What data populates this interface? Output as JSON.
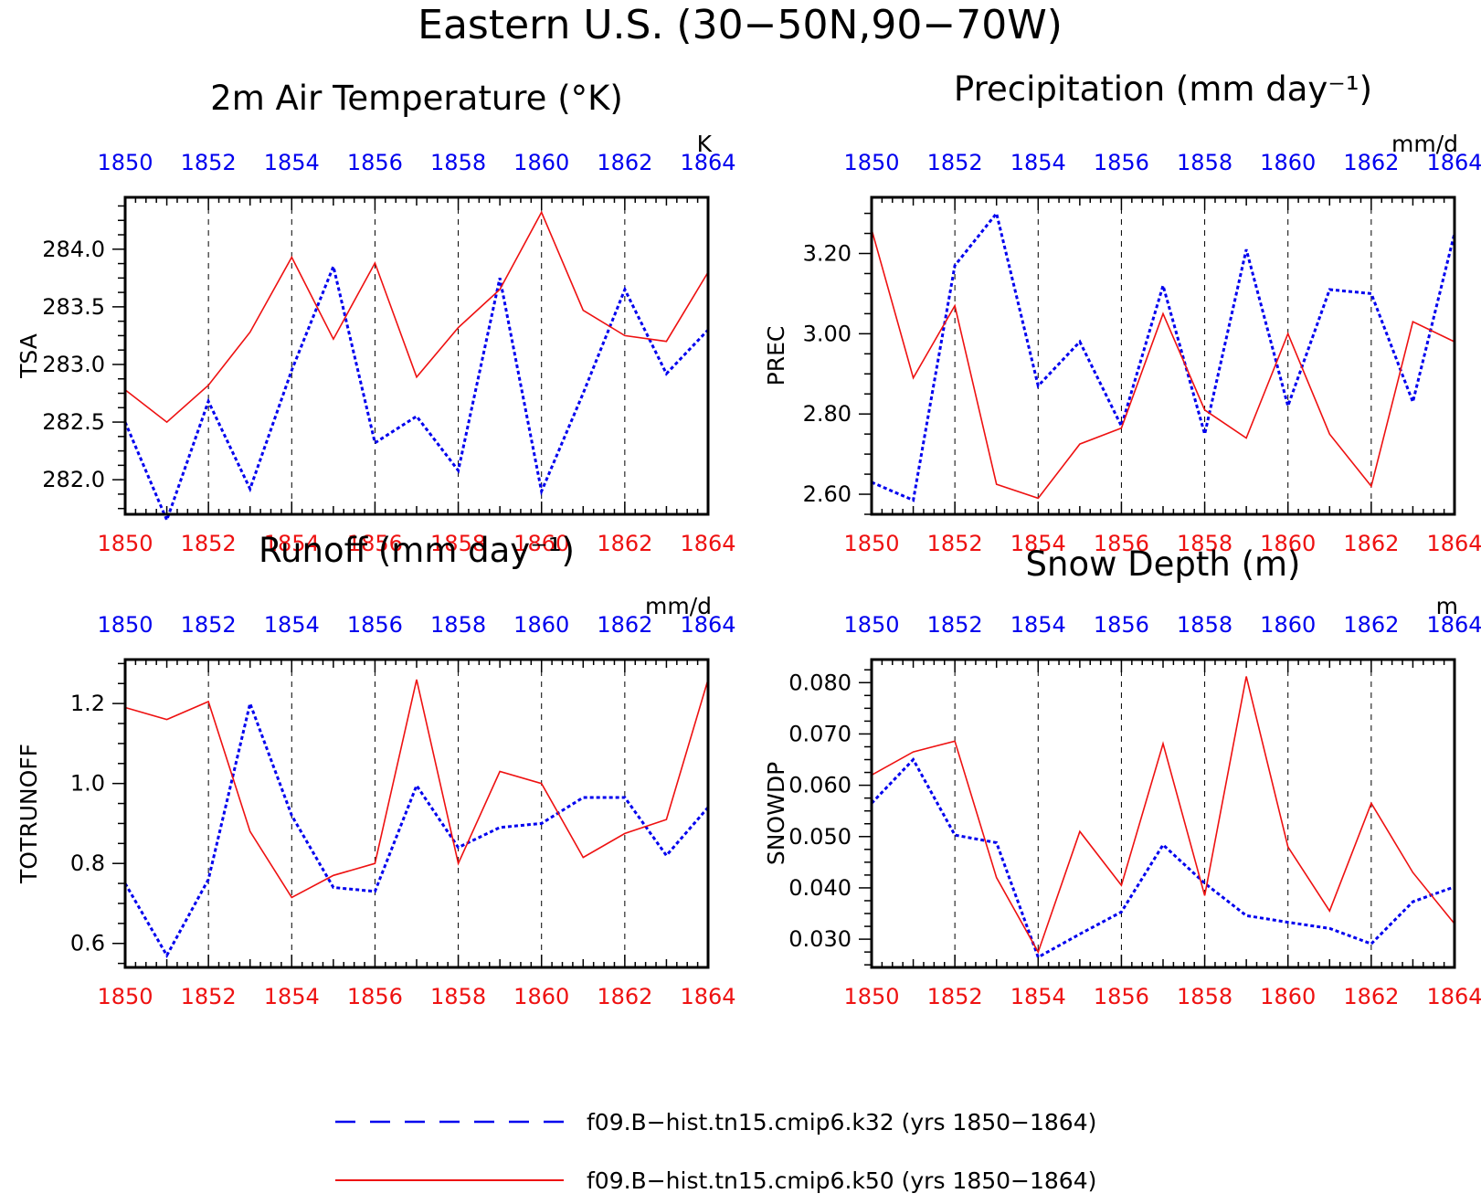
{
  "title": "Eastern U.S. (30−50N,90−70W)",
  "colors": {
    "k32": "#0000ee",
    "k50": "#ee1111",
    "frame": "#000000",
    "grid": "#000000"
  },
  "legend": [
    {
      "label": "f09.B−hist.tn15.cmip6.k32 (yrs 1850−1864)",
      "color": "#0000ee",
      "style": "dashed"
    },
    {
      "label": "f09.B−hist.tn15.cmip6.k50 (yrs 1850−1864)",
      "color": "#ee1111",
      "style": "solid"
    }
  ],
  "chart_data": [
    {
      "type": "line",
      "title": "2m Air Temperature (°K)",
      "ylabel": "TSA",
      "units": "K",
      "x": [
        1850,
        1851,
        1852,
        1853,
        1854,
        1855,
        1856,
        1857,
        1858,
        1859,
        1860,
        1861,
        1862,
        1863,
        1864
      ],
      "xticks": [
        "1850",
        "1852",
        "1854",
        "1856",
        "1858",
        "1860",
        "1862",
        "1864"
      ],
      "yticks": [
        "282.0",
        "282.5",
        "283.0",
        "283.5",
        "284.0"
      ],
      "ylim": [
        281.7,
        284.45
      ],
      "grid": "vertical dashed at labeled years",
      "series": [
        {
          "name": "f09.B−hist.tn15.cmip6.k32",
          "values": [
            282.5,
            281.65,
            282.68,
            281.92,
            282.95,
            283.85,
            282.32,
            282.55,
            282.08,
            283.75,
            281.9,
            282.75,
            283.65,
            282.92,
            283.3
          ]
        },
        {
          "name": "f09.B−hist.tn15.cmip6.k50",
          "values": [
            282.78,
            282.5,
            282.82,
            283.28,
            283.93,
            283.22,
            283.88,
            282.89,
            283.32,
            283.65,
            284.32,
            283.47,
            283.25,
            283.2,
            283.8
          ]
        }
      ]
    },
    {
      "type": "line",
      "title": "Precipitation (mm day⁻¹)",
      "ylabel": "PREC",
      "units": "mm/d",
      "x": [
        1850,
        1851,
        1852,
        1853,
        1854,
        1855,
        1856,
        1857,
        1858,
        1859,
        1860,
        1861,
        1862,
        1863,
        1864
      ],
      "xticks": [
        "1850",
        "1852",
        "1854",
        "1856",
        "1858",
        "1860",
        "1862",
        "1864"
      ],
      "yticks": [
        "2.60",
        "2.80",
        "3.00",
        "3.20"
      ],
      "ylim": [
        2.55,
        3.34
      ],
      "grid": "vertical dashed at labeled years",
      "series": [
        {
          "name": "f09.B−hist.tn15.cmip6.k32",
          "values": [
            2.63,
            2.585,
            3.17,
            3.3,
            2.87,
            2.98,
            2.77,
            3.12,
            2.75,
            3.21,
            2.82,
            3.11,
            3.1,
            2.83,
            3.25
          ]
        },
        {
          "name": "f09.B−hist.tn15.cmip6.k50",
          "values": [
            3.26,
            2.89,
            3.07,
            2.625,
            2.59,
            2.725,
            2.765,
            3.05,
            2.81,
            2.74,
            3.0,
            2.75,
            2.62,
            3.03,
            2.98
          ]
        }
      ]
    },
    {
      "type": "line",
      "title": "Runoff (mm day⁻¹)",
      "ylabel": "TOTRUNOFF",
      "units": "mm/d",
      "x": [
        1850,
        1851,
        1852,
        1853,
        1854,
        1855,
        1856,
        1857,
        1858,
        1859,
        1860,
        1861,
        1862,
        1863,
        1864
      ],
      "xticks": [
        "1850",
        "1852",
        "1854",
        "1856",
        "1858",
        "1860",
        "1862",
        "1864"
      ],
      "yticks": [
        "0.6",
        "0.8",
        "1.0",
        "1.2"
      ],
      "ylim": [
        0.54,
        1.31
      ],
      "grid": "vertical dashed at labeled years",
      "series": [
        {
          "name": "f09.B−hist.tn15.cmip6.k32",
          "values": [
            0.75,
            0.57,
            0.76,
            1.2,
            0.92,
            0.74,
            0.73,
            0.995,
            0.84,
            0.89,
            0.9,
            0.965,
            0.965,
            0.82,
            0.94
          ]
        },
        {
          "name": "f09.B−hist.tn15.cmip6.k50",
          "values": [
            1.19,
            1.16,
            1.205,
            0.88,
            0.715,
            0.77,
            0.8,
            1.26,
            0.8,
            1.03,
            1.0,
            0.815,
            0.875,
            0.91,
            1.26
          ]
        }
      ]
    },
    {
      "type": "line",
      "title": "Snow Depth (m)",
      "ylabel": "SNOWDP",
      "units": "m",
      "x": [
        1850,
        1851,
        1852,
        1853,
        1854,
        1855,
        1856,
        1857,
        1858,
        1859,
        1860,
        1861,
        1862,
        1863,
        1864
      ],
      "xticks": [
        "1850",
        "1852",
        "1854",
        "1856",
        "1858",
        "1860",
        "1862",
        "1864"
      ],
      "yticks": [
        "0.030",
        "0.040",
        "0.050",
        "0.060",
        "0.070",
        "0.080"
      ],
      "ylim": [
        0.0245,
        0.0845
      ],
      "grid": "vertical dashed at labeled years",
      "series": [
        {
          "name": "f09.B−hist.tn15.cmip6.k32",
          "values": [
            0.0565,
            0.065,
            0.0503,
            0.0488,
            0.0265,
            0.031,
            0.0353,
            0.0484,
            0.0409,
            0.0346,
            0.0333,
            0.0321,
            0.0291,
            0.0373,
            0.0402
          ]
        },
        {
          "name": "f09.B−hist.tn15.cmip6.k50",
          "values": [
            0.062,
            0.0665,
            0.0686,
            0.042,
            0.0275,
            0.051,
            0.0405,
            0.0681,
            0.0385,
            0.0812,
            0.048,
            0.0355,
            0.0565,
            0.043,
            0.033
          ]
        }
      ]
    }
  ]
}
